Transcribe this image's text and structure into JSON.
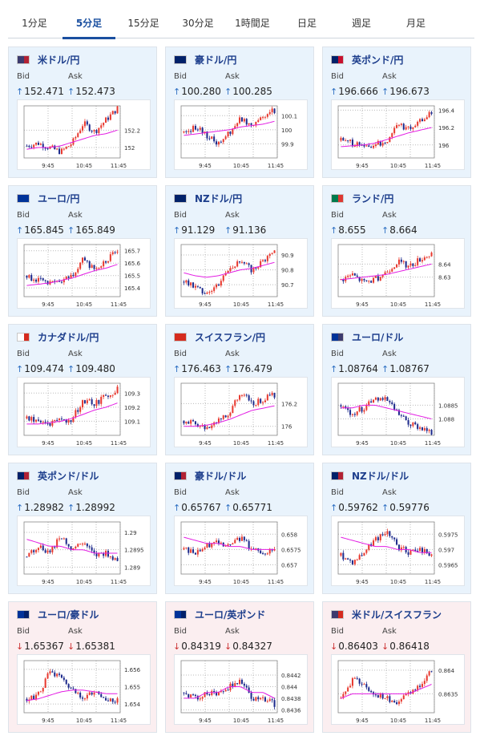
{
  "tabs": [
    "1分足",
    "5分足",
    "15分足",
    "30分足",
    "1時間足",
    "日足",
    "週足",
    "月足"
  ],
  "active_tab": 1,
  "bid_label": "Bid",
  "ask_label": "Ask",
  "x_ticks": [
    "9:45",
    "10:45",
    "11:45"
  ],
  "colors": {
    "up_bg": "#e9f3fc",
    "down_bg": "#fbeef0",
    "bull_candle": "#e8392f",
    "bear_candle": "#1d2a8c",
    "ma_line": "#e31ce3",
    "up_arrow": "#2e6fc2",
    "down_arrow": "#cc3333"
  },
  "cards": [
    {
      "pair": "米ドル/円",
      "direction": "up",
      "bid": "152.471",
      "ask": "152.473",
      "flag": [
        "#3c3b6e",
        "#b22234"
      ],
      "chart_data": {
        "type": "candlestick",
        "y_ticks": [
          "152.2",
          "152"
        ],
        "ylim": [
          151.88,
          152.48
        ],
        "trend": [
          152.02,
          152.05,
          152.0,
          151.95,
          152.05,
          152.28,
          152.18,
          152.32,
          152.45
        ],
        "ma": [
          151.98,
          152.0,
          152.0,
          152.02,
          152.06,
          152.1,
          152.14,
          152.16,
          152.2
        ]
      }
    },
    {
      "pair": "豪ドル/円",
      "direction": "up",
      "bid": "100.280",
      "ask": "100.285",
      "flag": [
        "#012169",
        "#012169"
      ],
      "chart_data": {
        "type": "candlestick",
        "y_ticks": [
          "100.1",
          "100",
          "99.9"
        ],
        "ylim": [
          99.8,
          100.17
        ],
        "trend": [
          99.98,
          100.02,
          99.96,
          99.9,
          99.98,
          100.08,
          100.04,
          100.1,
          100.14
        ],
        "ma": [
          99.96,
          99.97,
          99.98,
          99.99,
          100.0,
          100.02,
          100.03,
          100.04,
          100.06
        ]
      }
    },
    {
      "pair": "英ポンド/円",
      "direction": "up",
      "bid": "196.666",
      "ask": "196.673",
      "flag": [
        "#012169",
        "#c8102e"
      ],
      "chart_data": {
        "type": "candlestick",
        "y_ticks": [
          "196.4",
          "196.2",
          "196"
        ],
        "ylim": [
          195.85,
          196.45
        ],
        "trend": [
          196.05,
          196.02,
          195.98,
          196.0,
          196.04,
          196.25,
          196.18,
          196.28,
          196.38
        ],
        "ma": [
          195.98,
          195.99,
          196.0,
          196.02,
          196.06,
          196.1,
          196.14,
          196.17,
          196.2
        ]
      }
    },
    {
      "pair": "ユーロ/円",
      "direction": "up",
      "bid": "165.845",
      "ask": "165.849",
      "flag": [
        "#003399",
        "#003399"
      ],
      "chart_data": {
        "type": "candlestick",
        "y_ticks": [
          "165.7",
          "165.6",
          "165.5",
          "165.4"
        ],
        "ylim": [
          165.33,
          165.75
        ],
        "trend": [
          165.5,
          165.46,
          165.43,
          165.45,
          165.5,
          165.63,
          165.55,
          165.62,
          165.7
        ],
        "ma": [
          165.42,
          165.43,
          165.44,
          165.46,
          165.48,
          165.51,
          165.54,
          165.56,
          165.59
        ]
      }
    },
    {
      "pair": "NZドル/円",
      "direction": "up",
      "bid": "91.129",
      "ask": "91.136",
      "flag": [
        "#012169",
        "#012169"
      ],
      "chart_data": {
        "type": "candlestick",
        "y_ticks": [
          "90.9",
          "90.8",
          "90.7"
        ],
        "ylim": [
          90.62,
          90.97
        ],
        "trend": [
          90.72,
          90.68,
          90.65,
          90.7,
          90.82,
          90.85,
          90.8,
          90.86,
          90.93
        ],
        "ma": [
          90.78,
          90.76,
          90.75,
          90.76,
          90.78,
          90.8,
          90.81,
          90.83,
          90.85
        ]
      }
    },
    {
      "pair": "ランド/円",
      "direction": "up",
      "bid": "8.655",
      "ask": "8.664",
      "flag": [
        "#007a4d",
        "#de3831"
      ],
      "chart_data": {
        "type": "candlestick",
        "y_ticks": [
          "8.64",
          "8.63"
        ],
        "ylim": [
          8.615,
          8.655
        ],
        "trend": [
          8.628,
          8.632,
          8.626,
          8.628,
          8.634,
          8.642,
          8.638,
          8.644,
          8.648
        ],
        "ma": [
          8.628,
          8.629,
          8.63,
          8.631,
          8.632,
          8.634,
          8.636,
          8.638,
          8.64
        ]
      }
    },
    {
      "pair": "カナダドル/円",
      "direction": "up",
      "bid": "109.474",
      "ask": "109.480",
      "flag": [
        "#ffffff",
        "#d52b1e"
      ],
      "chart_data": {
        "type": "candlestick",
        "y_ticks": [
          "109.3",
          "109.2",
          "109.1"
        ],
        "ylim": [
          109.0,
          109.37
        ],
        "trend": [
          109.12,
          109.1,
          109.08,
          109.1,
          109.12,
          109.25,
          109.22,
          109.28,
          109.33
        ],
        "ma": [
          109.08,
          109.08,
          109.09,
          109.1,
          109.12,
          109.15,
          109.18,
          109.2,
          109.23
        ]
      }
    },
    {
      "pair": "スイスフラン/円",
      "direction": "up",
      "bid": "176.463",
      "ask": "176.479",
      "flag": [
        "#d52b1e",
        "#d52b1e"
      ],
      "chart_data": {
        "type": "candlestick",
        "y_ticks": [
          "176.2",
          "176"
        ],
        "ylim": [
          175.92,
          176.38
        ],
        "trend": [
          176.05,
          176.02,
          175.98,
          176.06,
          176.1,
          176.3,
          176.2,
          176.24,
          176.28
        ],
        "ma": [
          176.0,
          176.0,
          176.01,
          176.03,
          176.06,
          176.1,
          176.14,
          176.16,
          176.18
        ]
      }
    },
    {
      "pair": "ユーロ/ドル",
      "direction": "up",
      "bid": "1.08764",
      "ask": "1.08767",
      "flag": [
        "#003399",
        "#3c3b6e"
      ],
      "chart_data": {
        "type": "candlestick",
        "y_ticks": [
          "1.0885",
          "1.088"
        ],
        "ylim": [
          1.0874,
          1.0893
        ],
        "trend": [
          1.0885,
          1.0882,
          1.0884,
          1.0888,
          1.0887,
          1.0882,
          1.0878,
          1.0877,
          1.0875
        ],
        "ma": [
          1.0884,
          1.0884,
          1.0885,
          1.0885,
          1.0884,
          1.0883,
          1.0882,
          1.0881,
          1.088
        ]
      }
    },
    {
      "pair": "英ポンド/ドル",
      "direction": "up",
      "bid": "1.28982",
      "ask": "1.28992",
      "flag": [
        "#012169",
        "#b22234"
      ],
      "chart_data": {
        "type": "candlestick",
        "y_ticks": [
          "1.29",
          "1.2895",
          "1.289"
        ],
        "ylim": [
          1.2888,
          1.2903
        ],
        "trend": [
          1.2893,
          1.2896,
          1.2894,
          1.2899,
          1.2895,
          1.2897,
          1.2893,
          1.2894,
          1.2892
        ],
        "ma": [
          1.2898,
          1.2897,
          1.2896,
          1.2896,
          1.2895,
          1.2895,
          1.2894,
          1.2894,
          1.2894
        ]
      }
    },
    {
      "pair": "豪ドル/ドル",
      "direction": "up",
      "bid": "0.65767",
      "ask": "0.65771",
      "flag": [
        "#012169",
        "#b22234"
      ],
      "chart_data": {
        "type": "candlestick",
        "y_ticks": [
          "0.658",
          "0.6575",
          "0.657"
        ],
        "ylim": [
          0.6567,
          0.6584
        ],
        "trend": [
          0.6575,
          0.6574,
          0.6576,
          0.6578,
          0.6576,
          0.6579,
          0.6575,
          0.6574,
          0.6575
        ],
        "ma": [
          0.6579,
          0.6578,
          0.6577,
          0.6577,
          0.6576,
          0.6576,
          0.6575,
          0.6575,
          0.6575
        ]
      }
    },
    {
      "pair": "NZドル/ドル",
      "direction": "up",
      "bid": "0.59762",
      "ask": "0.59776",
      "flag": [
        "#012169",
        "#b22234"
      ],
      "chart_data": {
        "type": "candlestick",
        "y_ticks": [
          "0.5975",
          "0.597",
          "0.5965"
        ],
        "ylim": [
          0.5962,
          0.5979
        ],
        "trend": [
          0.5968,
          0.5966,
          0.5969,
          0.5973,
          0.5976,
          0.5971,
          0.5969,
          0.597,
          0.5968
        ],
        "ma": [
          0.5974,
          0.5973,
          0.5972,
          0.5971,
          0.5971,
          0.597,
          0.597,
          0.5969,
          0.5969
        ]
      }
    },
    {
      "pair": "ユーロ/豪ドル",
      "direction": "down",
      "bid": "1.65367",
      "ask": "1.65381",
      "flag": [
        "#003399",
        "#012169"
      ],
      "chart_data": {
        "type": "candlestick",
        "y_ticks": [
          "1.656",
          "1.655",
          "1.654"
        ],
        "ylim": [
          1.6535,
          1.6565
        ],
        "trend": [
          1.6543,
          1.6545,
          1.6558,
          1.6555,
          1.6548,
          1.6544,
          1.6546,
          1.6543,
          1.6542
        ],
        "ma": [
          1.6542,
          1.6543,
          1.6545,
          1.6547,
          1.6548,
          1.6548,
          1.6547,
          1.6546,
          1.6546
        ]
      }
    },
    {
      "pair": "ユーロ/英ポンド",
      "direction": "down",
      "bid": "0.84319",
      "ask": "0.84327",
      "flag": [
        "#003399",
        "#012169"
      ],
      "chart_data": {
        "type": "candlestick",
        "y_ticks": [
          "0.8442",
          "0.844",
          "0.8438",
          "0.8436"
        ],
        "ylim": [
          0.84355,
          0.84445
        ],
        "trend": [
          0.8439,
          0.8438,
          0.8439,
          0.8439,
          0.844,
          0.8441,
          0.8438,
          0.8438,
          0.8437
        ],
        "ma": [
          0.8438,
          0.8438,
          0.8439,
          0.8439,
          0.844,
          0.844,
          0.8439,
          0.8439,
          0.8438
        ]
      }
    },
    {
      "pair": "米ドル/スイスフラン",
      "direction": "down",
      "bid": "0.86403",
      "ask": "0.86418",
      "flag": [
        "#3c3b6e",
        "#d52b1e"
      ],
      "chart_data": {
        "type": "candlestick",
        "y_ticks": [
          "0.864",
          "0.8635"
        ],
        "ylim": [
          0.8631,
          0.8642
        ],
        "trend": [
          0.8634,
          0.8638,
          0.8637,
          0.8635,
          0.8634,
          0.8633,
          0.8635,
          0.8637,
          0.864
        ],
        "ma": [
          0.8634,
          0.8635,
          0.8635,
          0.8635,
          0.8635,
          0.8635,
          0.8635,
          0.8636,
          0.8637
        ]
      }
    }
  ]
}
